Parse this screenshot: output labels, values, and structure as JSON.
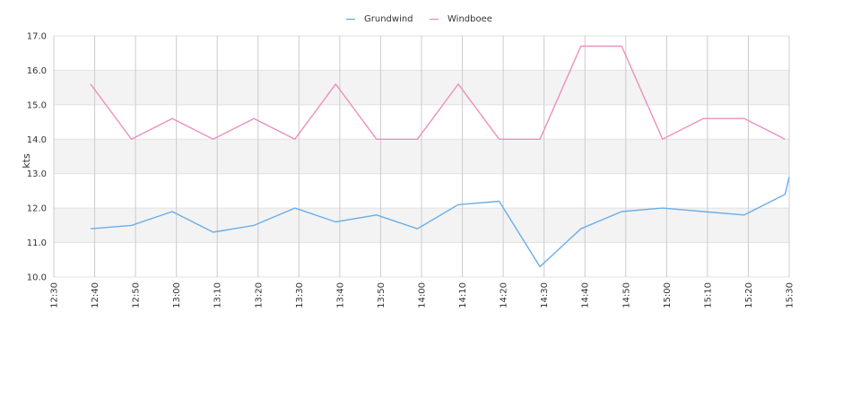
{
  "chart_data": {
    "type": "line",
    "ylabel": "kts",
    "ylim": [
      10.0,
      17.0
    ],
    "yticks": [
      "10.0",
      "11.0",
      "12.0",
      "13.0",
      "14.0",
      "15.0",
      "16.0",
      "17.0"
    ],
    "xticks": [
      "12:30",
      "12:40",
      "12:50",
      "13:00",
      "13:10",
      "13:20",
      "13:30",
      "13:40",
      "13:50",
      "14:00",
      "14:10",
      "14:20",
      "14:30",
      "14:40",
      "14:50",
      "15:00",
      "15:10",
      "15:20",
      "15:30"
    ],
    "xlim": [
      "12:30",
      "15:30"
    ],
    "grid": true,
    "legend_position": "top-center",
    "series": [
      {
        "name": "Grundwind",
        "color": "#6aaee8",
        "points": [
          [
            "12:39",
            11.4
          ],
          [
            "12:49",
            11.5
          ],
          [
            "12:59",
            11.9
          ],
          [
            "13:09",
            11.3
          ],
          [
            "13:19",
            11.5
          ],
          [
            "13:29",
            12.0
          ],
          [
            "13:39",
            11.6
          ],
          [
            "13:49",
            11.8
          ],
          [
            "13:59",
            11.4
          ],
          [
            "14:09",
            12.1
          ],
          [
            "14:19",
            12.2
          ],
          [
            "14:29",
            10.3
          ],
          [
            "14:39",
            11.4
          ],
          [
            "14:49",
            11.9
          ],
          [
            "14:59",
            12.0
          ],
          [
            "15:09",
            11.9
          ],
          [
            "15:19",
            11.8
          ],
          [
            "15:29",
            12.4
          ],
          [
            "15:30",
            12.9
          ]
        ]
      },
      {
        "name": "Windboee",
        "color": "#ec8fbe",
        "points": [
          [
            "12:39",
            15.6
          ],
          [
            "12:49",
            14.0
          ],
          [
            "12:59",
            14.6
          ],
          [
            "13:09",
            14.0
          ],
          [
            "13:19",
            14.6
          ],
          [
            "13:29",
            14.0
          ],
          [
            "13:39",
            15.6
          ],
          [
            "13:49",
            14.0
          ],
          [
            "13:59",
            14.0
          ],
          [
            "14:09",
            15.6
          ],
          [
            "14:19",
            14.0
          ],
          [
            "14:29",
            14.0
          ],
          [
            "14:39",
            16.7
          ],
          [
            "14:49",
            16.7
          ],
          [
            "14:59",
            14.0
          ],
          [
            "15:09",
            14.6
          ],
          [
            "15:19",
            14.6
          ],
          [
            "15:29",
            14.0
          ]
        ]
      }
    ]
  }
}
